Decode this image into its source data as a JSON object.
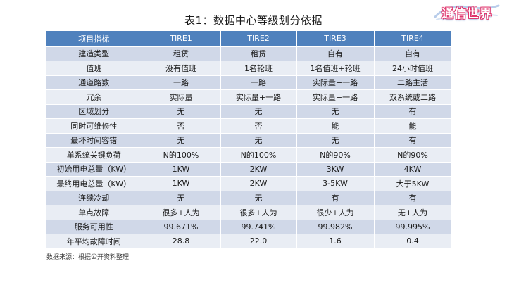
{
  "title": "表1：数据中心等级划分依据",
  "logo": {
    "text": "通信世界"
  },
  "table": {
    "headers": [
      "项目指标",
      "TIRE1",
      "TIRE2",
      "TIRE3",
      "TIRE4"
    ],
    "rows": [
      [
        "建造类型",
        "租赁",
        "租赁",
        "自有",
        "自有"
      ],
      [
        "值班",
        "没有值班",
        "1名轮班",
        "1名值班+轮班",
        "24小时值班"
      ],
      [
        "通道路数",
        "一路",
        "一路",
        "实际量+一路",
        "二路主活"
      ],
      [
        "冗余",
        "实际量",
        "实际量+一路",
        "实际量+一路",
        "双系统或二路"
      ],
      [
        "区域划分",
        "无",
        "无",
        "无",
        "有"
      ],
      [
        "同时可维修性",
        "否",
        "否",
        "能",
        "能"
      ],
      [
        "最坏时间容错",
        "无",
        "无",
        "无",
        "有"
      ],
      [
        "单系统关键负荷",
        "N的100%",
        "N的100%",
        "N的90%",
        "N的90%"
      ],
      [
        "初始用电总量（KW）",
        "1KW",
        "2KW",
        "3KW",
        "4KW"
      ],
      [
        "最终用电总量（KW）",
        "1KW",
        "2KW",
        "3-5KW",
        "大于5KW"
      ],
      [
        "连续冷却",
        "无",
        "无",
        "有",
        "有"
      ],
      [
        "单点故障",
        "很多+人为",
        "很多+人为",
        "很少+人为",
        "无+人为"
      ],
      [
        "服务可用性",
        "99.671%",
        "99.741%",
        "99.982%",
        "99.995%"
      ],
      [
        "年平均故障时间",
        "28.8",
        "22.0",
        "1.6",
        "0.4"
      ]
    ]
  },
  "source": "数据来源：根据公开资料整理",
  "colors": {
    "header_bg": "#4f81bd",
    "row_odd": "#d0d8e8",
    "row_even": "#e9edf4",
    "logo_accent": "#e0336b"
  }
}
